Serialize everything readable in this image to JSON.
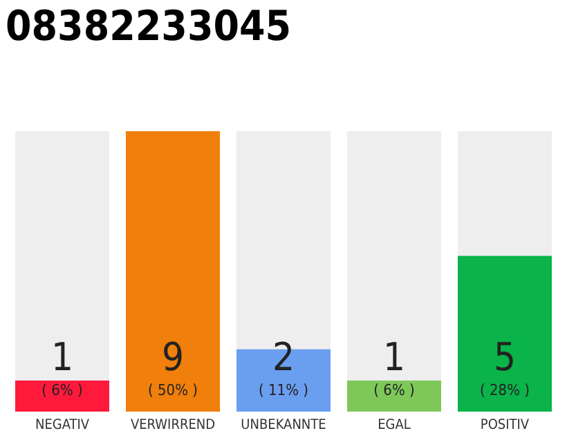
{
  "chart_data": {
    "type": "bar",
    "title": "08382233045",
    "categories": [
      "NEGATIV",
      "VERWIRREND",
      "UNBEKANNTE",
      "EGAL",
      "POSITIV"
    ],
    "values": [
      1,
      9,
      2,
      1,
      5
    ],
    "colors": [
      "#ff1a3c",
      "#f07f0b",
      "#6a9ff0",
      "#7ec85a",
      "#0ab44a"
    ],
    "tick_labels": "x",
    "data_labels": true,
    "annotations": [
      {
        "text": "( 6% )",
        "x": "NEGATIV",
        "y": 0
      },
      {
        "text": "( 50% )",
        "x": "VERWIRREND",
        "y": 0
      },
      {
        "text": "( 11% )",
        "x": "UNBEKANNTE",
        "y": 0
      },
      {
        "text": "( 6% )",
        "x": "EGAL",
        "y": 0
      },
      {
        "text": "( 28% )",
        "x": "POSITIV",
        "y": 0
      }
    ],
    "grid": false,
    "legend": false
  }
}
